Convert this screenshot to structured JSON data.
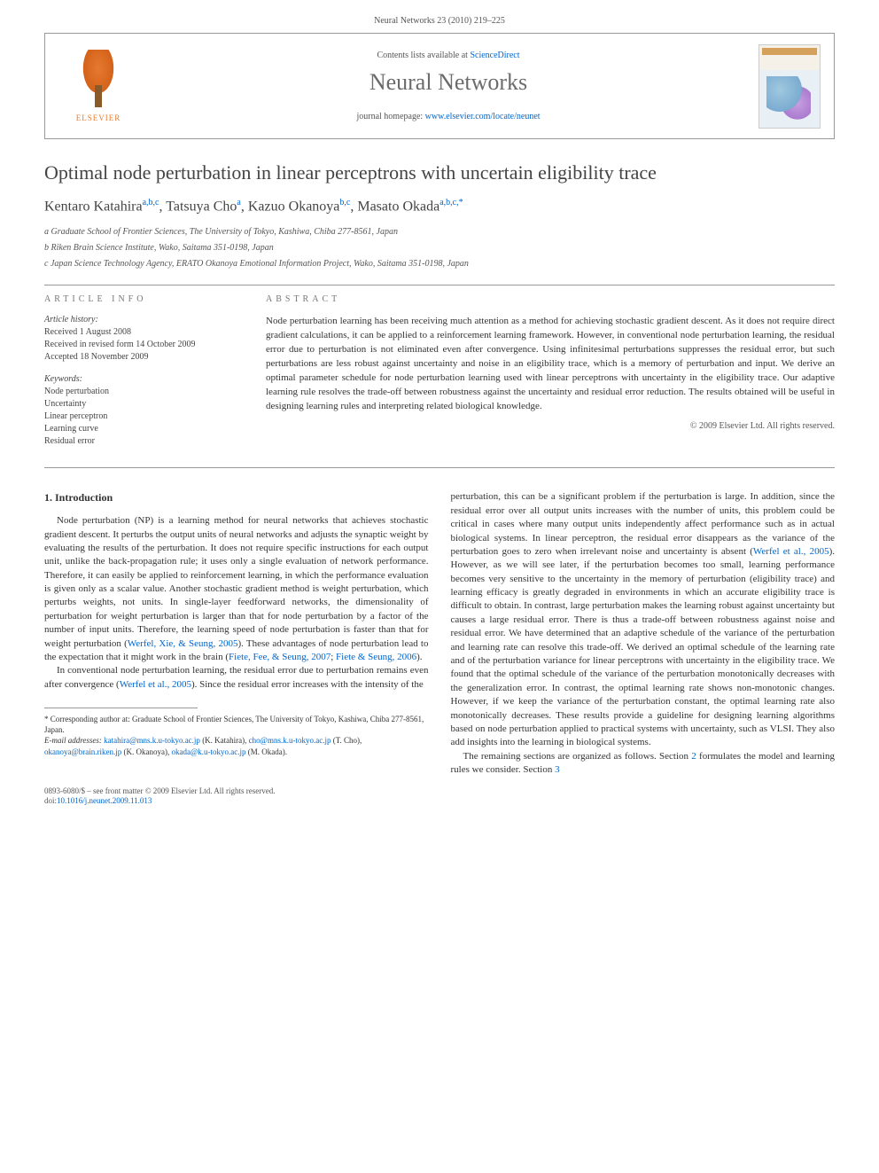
{
  "header": {
    "citation": "Neural Networks 23 (2010) 219–225"
  },
  "sciencedirect": {
    "contents_prefix": "Contents lists available at ",
    "contents_link": "ScienceDirect",
    "journal_name": "Neural Networks",
    "homepage_prefix": "journal homepage: ",
    "homepage_link": "www.elsevier.com/locate/neunet",
    "publisher": "ELSEVIER"
  },
  "article": {
    "title": "Optimal node perturbation in linear perceptrons with uncertain eligibility trace",
    "authors_html": "Kentaro Katahira",
    "author1": "Kentaro Katahira",
    "author1_aff": "a,b,c",
    "author2": "Tatsuya Cho",
    "author2_aff": "a",
    "author3": "Kazuo Okanoya",
    "author3_aff": "b,c",
    "author4": "Masato Okada",
    "author4_aff": "a,b,c,",
    "star": "*",
    "affiliations": {
      "a": "a Graduate School of Frontier Sciences, The University of Tokyo, Kashiwa, Chiba 277-8561, Japan",
      "b": "b Riken Brain Science Institute, Wako, Saitama 351-0198, Japan",
      "c": "c Japan Science Technology Agency, ERATO Okanoya Emotional Information Project, Wako, Saitama 351-0198, Japan"
    }
  },
  "info": {
    "heading": "ARTICLE INFO",
    "history_label": "Article history:",
    "history": "Received 1 August 2008\nReceived in revised form 14 October 2009\nAccepted 18 November 2009",
    "keywords_label": "Keywords:",
    "keywords": "Node perturbation\nUncertainty\nLinear perceptron\nLearning curve\nResidual error"
  },
  "abstract": {
    "heading": "ABSTRACT",
    "text": "Node perturbation learning has been receiving much attention as a method for achieving stochastic gradient descent. As it does not require direct gradient calculations, it can be applied to a reinforcement learning framework. However, in conventional node perturbation learning, the residual error due to perturbation is not eliminated even after convergence. Using infinitesimal perturbations suppresses the residual error, but such perturbations are less robust against uncertainty and noise in an eligibility trace, which is a memory of perturbation and input. We derive an optimal parameter schedule for node perturbation learning used with linear perceptrons with uncertainty in the eligibility trace. Our adaptive learning rule resolves the trade-off between robustness against the uncertainty and residual error reduction. The results obtained will be useful in designing learning rules and interpreting related biological knowledge.",
    "copyright": "© 2009 Elsevier Ltd. All rights reserved."
  },
  "body": {
    "section1_heading": "1. Introduction",
    "para1": "Node perturbation (NP) is a learning method for neural networks that achieves stochastic gradient descent. It perturbs the output units of neural networks and adjusts the synaptic weight by evaluating the results of the perturbation. It does not require specific instructions for each output unit, unlike the back-propagation rule; it uses only a single evaluation of network performance. Therefore, it can easily be applied to reinforcement learning, in which the performance evaluation is given only as a scalar value. Another stochastic gradient method is weight perturbation, which perturbs weights, not units. In single-layer feedforward networks, the dimensionality of perturbation for weight perturbation is larger than that for node perturbation by a factor of the number of input units. Therefore, the learning speed of node perturbation is faster than that for weight perturbation (",
    "ref1": "Werfel, Xie, & Seung, 2005",
    "para1b": "). These advantages of node perturbation lead to the expectation that it might work in the brain (",
    "ref2": "Fiete, Fee, & Seung, 2007",
    "para1c": "; ",
    "ref3": "Fiete & Seung, 2006",
    "para1d": ").",
    "para2": "In conventional node perturbation learning, the residual error due to perturbation remains even after convergence (",
    "ref4": "Werfel et al., 2005",
    "para2b": "). Since the residual error increases with the intensity of the",
    "para3": "perturbation, this can be a significant problem if the perturbation is large. In addition, since the residual error over all output units increases with the number of units, this problem could be critical in cases where many output units independently affect performance such as in actual biological systems. In linear perceptron, the residual error disappears as the variance of the perturbation goes to zero when irrelevant noise and uncertainty is absent (",
    "ref5": "Werfel et al., 2005",
    "para3b": "). However, as we will see later, if the perturbation becomes too small, learning performance becomes very sensitive to the uncertainty in the memory of perturbation (eligibility trace) and learning efficacy is greatly degraded in environments in which an accurate eligibility trace is difficult to obtain. In contrast, large perturbation makes the learning robust against uncertainty but causes a large residual error. There is thus a trade-off between robustness against noise and residual error. We have determined that an adaptive schedule of the variance of the perturbation and learning rate can resolve this trade-off. We derived an optimal schedule of the learning rate and of the perturbation variance for linear perceptrons with uncertainty in the eligibility trace. We found that the optimal schedule of the variance of the perturbation monotonically decreases with the generalization error. In contrast, the optimal learning rate shows non-monotonic changes. However, if we keep the variance of the perturbation constant, the optimal learning rate also monotonically decreases. These results provide a guideline for designing learning algorithms based on node perturbation applied to practical systems with uncertainty, such as VLSI. They also add insights into the learning in biological systems.",
    "para4": "The remaining sections are organized as follows. Section ",
    "ref6": "2",
    "para4b": " formulates the model and learning rules we consider. Section ",
    "ref7": "3"
  },
  "footnote": {
    "corr_label": "* Corresponding author at: Graduate School of Frontier Sciences, The University of Tokyo, Kashiwa, Chiba 277-8561, Japan.",
    "email_label": "E-mail addresses:",
    "email1": "katahira@mns.k.u-tokyo.ac.jp",
    "name1": " (K. Katahira),",
    "email2": "cho@mns.k.u-tokyo.ac.jp",
    "name2": " (T. Cho), ",
    "email3": "okanoya@brain.riken.jp",
    "name3": " (K. Okanoya),",
    "email4": "okada@k.u-tokyo.ac.jp",
    "name4": " (M. Okada)."
  },
  "footer": {
    "line1": "0893-6080/$ – see front matter © 2009 Elsevier Ltd. All rights reserved.",
    "doi_prefix": "doi:",
    "doi": "10.1016/j.neunet.2009.11.013"
  },
  "colors": {
    "link": "#0066cc",
    "text": "#333333",
    "muted": "#555555",
    "border": "#999999",
    "elsevier_orange": "#e67a2e"
  }
}
